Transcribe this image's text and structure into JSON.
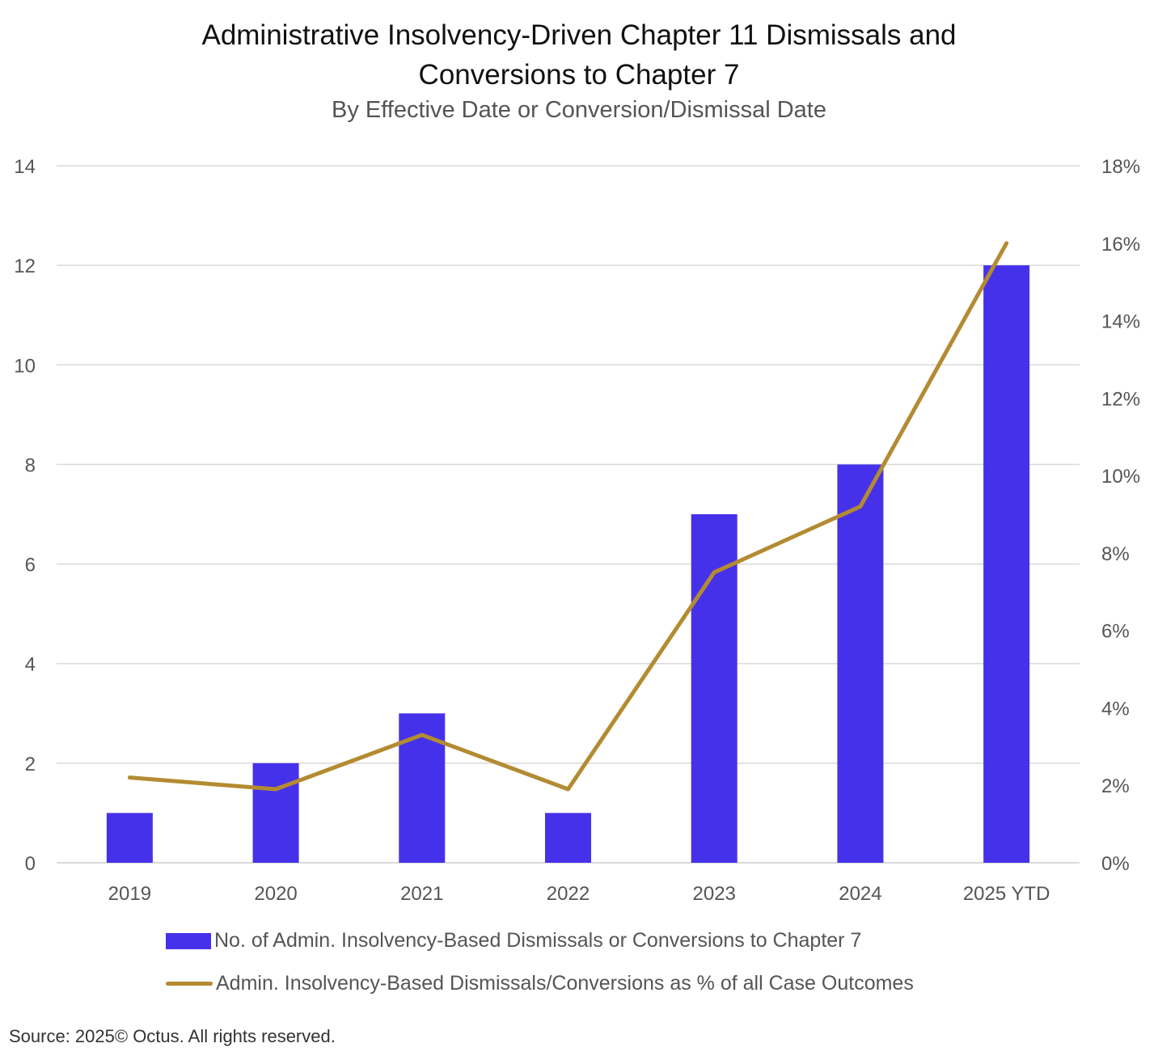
{
  "title_line1": "Administrative Insolvency-Driven Chapter 11 Dismissals and",
  "title_line2": "Conversions to Chapter 7",
  "subtitle": "By Effective Date or Conversion/Dismissal Date",
  "source": "Source: 2025© Octus. All rights reserved.",
  "colors": {
    "bar": "#4631EA",
    "line": "#B38B32",
    "grid": "#D9D9D9"
  },
  "chart_data": {
    "type": "bar",
    "title": "Administrative Insolvency-Driven Chapter 11 Dismissals and Conversions to Chapter 7",
    "subtitle": "By Effective Date or Conversion/Dismissal Date",
    "categories": [
      "2019",
      "2020",
      "2021",
      "2022",
      "2023",
      "2024",
      "2025 YTD"
    ],
    "series": [
      {
        "name": "No. of Admin. Insolvency-Based Dismissals or Conversions to Chapter 7",
        "type": "bar",
        "axis": "left",
        "values": [
          1,
          2,
          3,
          1,
          7,
          8,
          12
        ]
      },
      {
        "name": "Admin. Insolvency-Based Dismissals/Conversions as % of all Case Outcomes",
        "type": "line",
        "axis": "right",
        "values": [
          2.2,
          1.9,
          3.3,
          1.9,
          7.5,
          9.2,
          16.0
        ]
      }
    ],
    "y_left": {
      "min": 0,
      "max": 14,
      "ticks": [
        "0",
        "2",
        "4",
        "6",
        "8",
        "10",
        "12",
        "14"
      ],
      "tick_values": [
        0,
        2,
        4,
        6,
        8,
        10,
        12,
        14
      ]
    },
    "y_right": {
      "min": 0,
      "max": 18,
      "ticks": [
        "0%",
        "2%",
        "4%",
        "6%",
        "8%",
        "10%",
        "12%",
        "14%",
        "16%",
        "18%"
      ],
      "tick_values": [
        0,
        2,
        4,
        6,
        8,
        10,
        12,
        14,
        16,
        18
      ]
    },
    "grid": true,
    "legend_position": "bottom"
  }
}
